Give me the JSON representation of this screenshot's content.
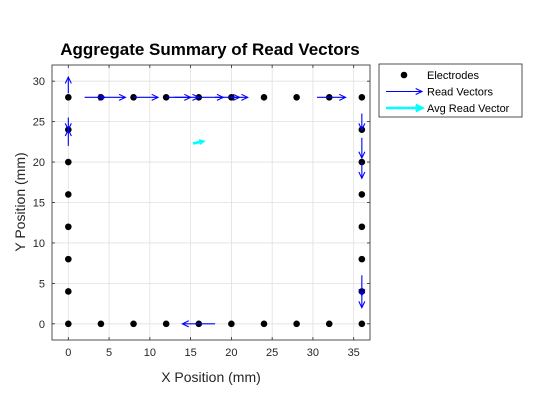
{
  "chart_data": {
    "type": "scatter",
    "title": "Aggregate Summary of Read Vectors",
    "xlabel": "X Position (mm)",
    "ylabel": "Y Position (mm)",
    "xlim": [
      -2,
      37
    ],
    "ylim": [
      -2,
      32
    ],
    "xticks": [
      0,
      5,
      10,
      15,
      20,
      25,
      30,
      35
    ],
    "yticks": [
      0,
      5,
      10,
      15,
      20,
      25,
      30
    ],
    "grid": true,
    "legend_position": "outside-top-right",
    "legend": [
      {
        "label": "Electrodes",
        "kind": "marker",
        "color": "#000000"
      },
      {
        "label": "Read Vectors",
        "kind": "arrow",
        "color": "#0000ff"
      },
      {
        "label": "Avg Read Vector",
        "kind": "arrow",
        "color": "#00ffff"
      }
    ],
    "electrodes": [
      [
        0,
        0
      ],
      [
        4,
        0
      ],
      [
        8,
        0
      ],
      [
        12,
        0
      ],
      [
        16,
        0
      ],
      [
        20,
        0
      ],
      [
        24,
        0
      ],
      [
        28,
        0
      ],
      [
        32,
        0
      ],
      [
        36,
        0
      ],
      [
        0,
        4
      ],
      [
        0,
        8
      ],
      [
        0,
        12
      ],
      [
        0,
        16
      ],
      [
        0,
        20
      ],
      [
        0,
        24
      ],
      [
        0,
        28
      ],
      [
        4,
        28
      ],
      [
        8,
        28
      ],
      [
        12,
        28
      ],
      [
        16,
        28
      ],
      [
        20,
        28
      ],
      [
        24,
        28
      ],
      [
        28,
        28
      ],
      [
        32,
        28
      ],
      [
        36,
        28
      ],
      [
        36,
        4
      ],
      [
        36,
        8
      ],
      [
        36,
        12
      ],
      [
        36,
        16
      ],
      [
        36,
        20
      ],
      [
        36,
        24
      ]
    ],
    "read_vectors": [
      {
        "x": 2,
        "y": 28,
        "u": 2.5,
        "v": 0
      },
      {
        "x": 4,
        "y": 28,
        "u": 3,
        "v": 0
      },
      {
        "x": 8,
        "y": 28,
        "u": 3,
        "v": 0
      },
      {
        "x": 12,
        "y": 28,
        "u": 3,
        "v": 0
      },
      {
        "x": 13,
        "y": 28,
        "u": 3,
        "v": 0
      },
      {
        "x": 16,
        "y": 28,
        "u": 3,
        "v": 0
      },
      {
        "x": 18,
        "y": 28,
        "u": 3,
        "v": 0
      },
      {
        "x": 20,
        "y": 28,
        "u": 2,
        "v": 0
      },
      {
        "x": 30.5,
        "y": 28,
        "u": 3.5,
        "v": 0
      },
      {
        "x": 0,
        "y": 28.5,
        "u": 0,
        "v": 2
      },
      {
        "x": 0,
        "y": 22,
        "u": 0,
        "v": 2
      },
      {
        "x": 0,
        "y": 25.5,
        "u": 0,
        "v": -1.5
      },
      {
        "x": 36,
        "y": 26,
        "u": 0,
        "v": -2
      },
      {
        "x": 36,
        "y": 23,
        "u": 0,
        "v": -2.5
      },
      {
        "x": 36,
        "y": 20,
        "u": 0,
        "v": -2
      },
      {
        "x": 36,
        "y": 6,
        "u": 0,
        "v": -2.5
      },
      {
        "x": 36,
        "y": 4,
        "u": 0,
        "v": -2
      },
      {
        "x": 18,
        "y": 0,
        "u": -4,
        "v": 0
      }
    ],
    "avg_read_vector": {
      "x": 15.3,
      "y": 22.3,
      "u": 1.2,
      "v": 0.25
    }
  },
  "colors": {
    "electrode": "#000000",
    "read_vector": "#0000ff",
    "avg_read_vector": "#00ffff",
    "grid": "#e0e0e0",
    "axis": "#262626"
  }
}
